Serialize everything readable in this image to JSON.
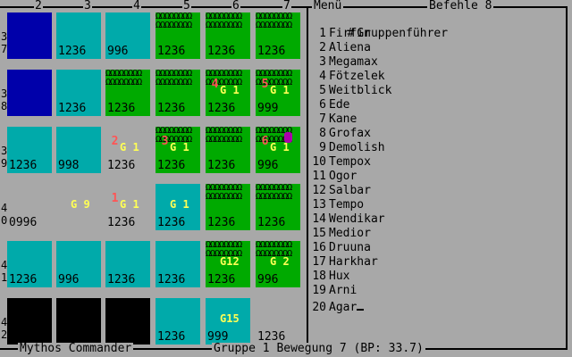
{
  "columns": [
    "2",
    "3",
    "4",
    "5",
    "6",
    "7"
  ],
  "row_labels": [
    "3\n7",
    "3\n8",
    "3\n9",
    "4\n0",
    "4\n1",
    "4\n2"
  ],
  "map": {
    "rows": [
      [
        {
          "terrain": "deep",
          "value": ""
        },
        {
          "terrain": "water",
          "value": "1236"
        },
        {
          "terrain": "water",
          "value": "996"
        },
        {
          "terrain": "forest",
          "value": "1236"
        },
        {
          "terrain": "forest",
          "value": "1236"
        },
        {
          "terrain": "forest",
          "value": "1236"
        }
      ],
      [
        {
          "terrain": "deep",
          "value": ""
        },
        {
          "terrain": "water",
          "value": "1236"
        },
        {
          "terrain": "forest",
          "value": "1236"
        },
        {
          "terrain": "forest",
          "value": "1236"
        },
        {
          "terrain": "forest",
          "value": "1236",
          "num": "4",
          "group": "G 1"
        },
        {
          "terrain": "forest",
          "value": "999",
          "num": "5",
          "group": "G 1"
        }
      ],
      [
        {
          "terrain": "water",
          "value": "1236"
        },
        {
          "terrain": "water",
          "value": "998"
        },
        {
          "terrain": "plain",
          "value": "1236",
          "num": "2",
          "group": "G 1"
        },
        {
          "terrain": "forest",
          "value": "1236",
          "num": "3",
          "group": "G 1"
        },
        {
          "terrain": "forest",
          "value": "1236"
        },
        {
          "terrain": "forest",
          "value": "996",
          "num": "6",
          "group": "G 1",
          "hero": true
        }
      ],
      [
        {
          "terrain": "plain",
          "value": "0996"
        },
        {
          "terrain": "plain",
          "value": "",
          "group": "G 9"
        },
        {
          "terrain": "plain",
          "value": "1236",
          "num": "1",
          "group": "G 1"
        },
        {
          "terrain": "water",
          "value": "1236",
          "group": "G 1"
        },
        {
          "terrain": "forest",
          "value": "1236"
        },
        {
          "terrain": "forest",
          "value": "1236"
        }
      ],
      [
        {
          "terrain": "water",
          "value": "1236"
        },
        {
          "terrain": "water",
          "value": "996"
        },
        {
          "terrain": "water",
          "value": "1236"
        },
        {
          "terrain": "water",
          "value": "1236"
        },
        {
          "terrain": "forest",
          "value": "1236",
          "group": "G12"
        },
        {
          "terrain": "forest",
          "value": "996",
          "group": "G 2"
        }
      ],
      [
        {
          "terrain": "void",
          "value": ""
        },
        {
          "terrain": "void",
          "value": ""
        },
        {
          "terrain": "void",
          "value": ""
        },
        {
          "terrain": "water",
          "value": "1236"
        },
        {
          "terrain": "water",
          "value": "999",
          "group": "G15"
        },
        {
          "terrain": "plain",
          "value": "1236"
        }
      ]
    ]
  },
  "tree_glyph": "ΩΩΩΩΩΩΩΩ",
  "header": {
    "menu": "Menü",
    "commands": "Befehle 8"
  },
  "groups_list": {
    "title_index": "#",
    "title_label": "Gruppenführer",
    "items": [
      {
        "index": "1",
        "name": "Firfin"
      },
      {
        "index": "2",
        "name": "Aliena"
      },
      {
        "index": "3",
        "name": "Megamax"
      },
      {
        "index": "4",
        "name": "Fötzelek"
      },
      {
        "index": "5",
        "name": "Weitblick"
      },
      {
        "index": "6",
        "name": "Ede"
      },
      {
        "index": "7",
        "name": "Kane"
      },
      {
        "index": "8",
        "name": "Grofax"
      },
      {
        "index": "9",
        "name": "Demolish"
      },
      {
        "index": "10",
        "name": "Tempox"
      },
      {
        "index": "11",
        "name": "Ogor"
      },
      {
        "index": "12",
        "name": "Salbar"
      },
      {
        "index": "13",
        "name": "Tempo"
      },
      {
        "index": "14",
        "name": "Wendikar"
      },
      {
        "index": "15",
        "name": "Medior"
      },
      {
        "index": "16",
        "name": "Druuna"
      },
      {
        "index": "17",
        "name": "Harkhar"
      },
      {
        "index": "18",
        "name": "Hux"
      },
      {
        "index": "19",
        "name": "Arni"
      },
      {
        "index": "20",
        "name": "Agar"
      }
    ]
  },
  "footer": {
    "game_title": "Mythos Commander",
    "status": "Gruppe 1 Bewegung 7 (BP: 33.7)"
  },
  "colors": {
    "background": "#a8a8a8",
    "water": "#00aaaa",
    "deep_water": "#0000aa",
    "forest": "#00aa00",
    "group_label": "#ffff55",
    "leader_number": "#ff5555",
    "hero": "#aa00aa"
  }
}
